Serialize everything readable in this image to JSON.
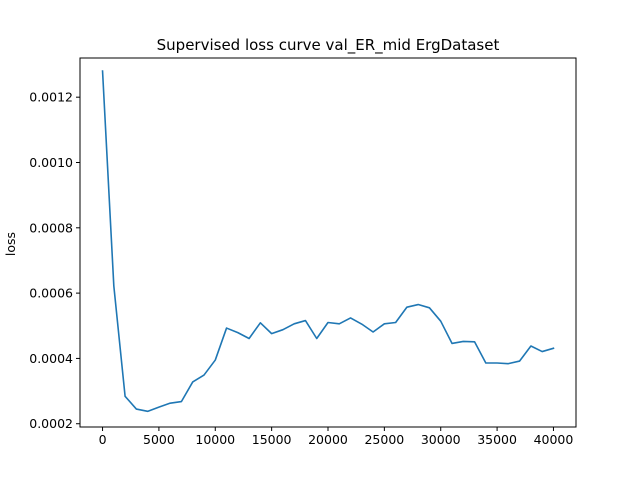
{
  "chart_data": {
    "type": "line",
    "title": "Supervised loss curve val_ER_mid ErgDataset",
    "xlabel": "",
    "ylabel": "loss",
    "xlim": [
      -2000,
      42000
    ],
    "ylim": [
      0.00019,
      0.00132
    ],
    "grid": false,
    "legend": "none",
    "x_ticks": [
      0,
      5000,
      10000,
      15000,
      20000,
      25000,
      30000,
      35000,
      40000
    ],
    "x_tick_labels": [
      "0",
      "5000",
      "10000",
      "15000",
      "20000",
      "25000",
      "30000",
      "35000",
      "40000"
    ],
    "y_ticks": [
      0.0002,
      0.0004,
      0.0006,
      0.0008,
      0.001,
      0.0012
    ],
    "y_tick_labels": [
      "0.0002",
      "0.0004",
      "0.0006",
      "0.0008",
      "0.0010",
      "0.0012"
    ],
    "series": [
      {
        "color": "#1f77b4",
        "x": [
          0,
          1000,
          2000,
          3000,
          4000,
          5000,
          6000,
          7000,
          8000,
          9000,
          10000,
          11000,
          12000,
          13000,
          14000,
          15000,
          16000,
          17000,
          18000,
          19000,
          20000,
          21000,
          22000,
          23000,
          24000,
          25000,
          26000,
          27000,
          28000,
          29000,
          30000,
          31000,
          32000,
          33000,
          34000,
          35000,
          36000,
          37000,
          38000,
          39000,
          40000
        ],
        "y": [
          0.00128,
          0.000622,
          0.000284,
          0.000245,
          0.000238,
          0.000251,
          0.000263,
          0.000268,
          0.000328,
          0.000349,
          0.000395,
          0.000493,
          0.000479,
          0.000461,
          0.000509,
          0.000476,
          0.000488,
          0.000506,
          0.000516,
          0.000461,
          0.00051,
          0.000506,
          0.000524,
          0.000505,
          0.000481,
          0.000506,
          0.00051,
          0.000557,
          0.000565,
          0.000555,
          0.000514,
          0.000446,
          0.000452,
          0.000451,
          0.000386,
          0.000386,
          0.000384,
          0.000392,
          0.000438,
          0.000421,
          0.000431
        ]
      }
    ]
  }
}
